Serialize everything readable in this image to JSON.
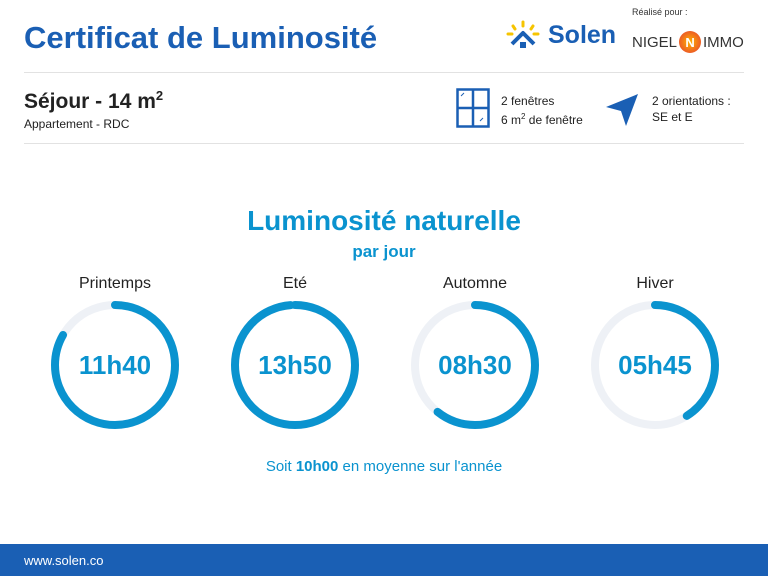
{
  "header": {
    "title": "Certificat de Luminosité",
    "realise_pour": "Réalisé pour :",
    "brand": "Solen",
    "partner_left": "NIGEL",
    "partner_mid": "N",
    "partner_right": "IMMO"
  },
  "room": {
    "name": "Séjour - 14 m",
    "sup": "2",
    "subtitle": "Appartement - RDC"
  },
  "windows": {
    "line1": "2 fenêtres",
    "line2a": "6 m",
    "line2sup": "2",
    "line2b": " de fenêtre"
  },
  "orientation": {
    "line1": "2 orientations :",
    "line2": "SE et E"
  },
  "main": {
    "title": "Luminosité naturelle",
    "subtitle": "par jour",
    "seasons": [
      {
        "label": "Printemps",
        "value": "11h40",
        "fraction": 0.833
      },
      {
        "label": "Eté",
        "value": "13h50",
        "fraction": 0.988
      },
      {
        "label": "Automne",
        "value": "08h30",
        "fraction": 0.607
      },
      {
        "label": "Hiver",
        "value": "05h45",
        "fraction": 0.411
      }
    ],
    "avg_pre": "Soit ",
    "avg_value": "10h00",
    "avg_post": " en moyenne sur l'année"
  },
  "footer": {
    "url": "www.solen.co"
  },
  "colors": {
    "accent": "#0a93cf",
    "brand": "#1a5fb4",
    "track": "#eef1f6"
  }
}
